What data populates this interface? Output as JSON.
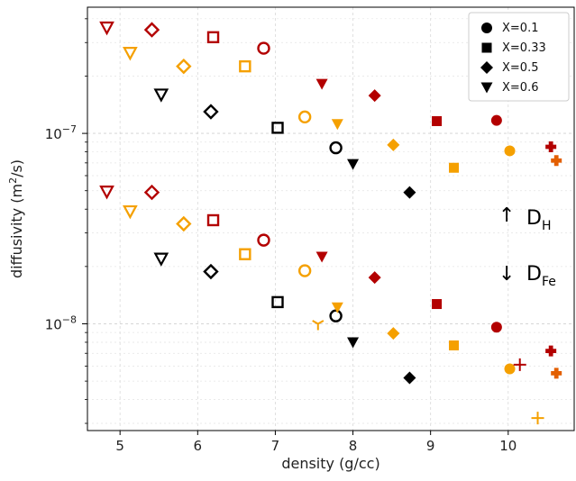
{
  "chart_data": {
    "type": "scatter",
    "xlabel": "density (g/cc)",
    "ylabel": "diffusivity (m",
    "ylabel_sup": "2",
    "ylabel_tail": "/s)",
    "xlim": [
      4.58,
      10.85
    ],
    "ylim": [
      2.75e-09,
      4.6e-07
    ],
    "yscale": "log",
    "grid": true,
    "x_ticks": [
      {
        "value": 5,
        "label": "5"
      },
      {
        "value": 6,
        "label": "6"
      },
      {
        "value": 7,
        "label": "7"
      },
      {
        "value": 8,
        "label": "8"
      },
      {
        "value": 9,
        "label": "9"
      },
      {
        "value": 10,
        "label": "10"
      }
    ],
    "y_ticks": [
      {
        "value": 1e-08,
        "label": "10",
        "exp": "−8"
      },
      {
        "value": 1e-07,
        "label": "10",
        "exp": "−7"
      }
    ],
    "legend": {
      "placement": "top-right",
      "entries": [
        {
          "label": "X=0.1",
          "marker": "circle"
        },
        {
          "label": "X=0.33",
          "marker": "square"
        },
        {
          "label": "X=0.5",
          "marker": "diamond"
        },
        {
          "label": "X=0.6",
          "marker": "triangle_down"
        }
      ]
    },
    "colors": {
      "dark_red": "#b30000",
      "orange": "#f5a000",
      "black": "#000000",
      "orange_red": "#e35f00"
    },
    "annotations": [
      {
        "arrow": "↑",
        "text": "D",
        "sub": "H"
      },
      {
        "arrow": "↓",
        "text": "D",
        "sub": "Fe"
      }
    ],
    "series": [
      {
        "group": "D_H",
        "points": [
          {
            "x": 4.83,
            "y": 3.6e-07,
            "marker": "triangle_down",
            "fill": "open",
            "color": "#b30000"
          },
          {
            "x": 5.13,
            "y": 2.65e-07,
            "marker": "triangle_down",
            "fill": "open",
            "color": "#f5a000"
          },
          {
            "x": 5.53,
            "y": 1.6e-07,
            "marker": "triangle_down",
            "fill": "open",
            "color": "#000000"
          },
          {
            "x": 5.41,
            "y": 3.5e-07,
            "marker": "diamond",
            "fill": "open",
            "color": "#b30000"
          },
          {
            "x": 5.82,
            "y": 2.25e-07,
            "marker": "diamond",
            "fill": "open",
            "color": "#f5a000"
          },
          {
            "x": 6.17,
            "y": 1.3e-07,
            "marker": "diamond",
            "fill": "open",
            "color": "#000000"
          },
          {
            "x": 6.2,
            "y": 3.2e-07,
            "marker": "square",
            "fill": "open",
            "color": "#b30000"
          },
          {
            "x": 6.61,
            "y": 2.25e-07,
            "marker": "square",
            "fill": "open",
            "color": "#f5a000"
          },
          {
            "x": 7.03,
            "y": 1.07e-07,
            "marker": "square",
            "fill": "open",
            "color": "#000000"
          },
          {
            "x": 6.85,
            "y": 2.8e-07,
            "marker": "circle",
            "fill": "open",
            "color": "#b30000"
          },
          {
            "x": 7.38,
            "y": 1.22e-07,
            "marker": "circle",
            "fill": "open",
            "color": "#f5a000"
          },
          {
            "x": 7.78,
            "y": 8.4e-08,
            "marker": "circle",
            "fill": "open",
            "color": "#000000"
          },
          {
            "x": 7.6,
            "y": 1.82e-07,
            "marker": "triangle_down",
            "fill": "filled",
            "color": "#b30000"
          },
          {
            "x": 7.8,
            "y": 1.12e-07,
            "marker": "triangle_down",
            "fill": "filled",
            "color": "#f5a000"
          },
          {
            "x": 8.0,
            "y": 6.9e-08,
            "marker": "triangle_down",
            "fill": "filled",
            "color": "#000000"
          },
          {
            "x": 8.28,
            "y": 1.58e-07,
            "marker": "diamond",
            "fill": "filled",
            "color": "#b30000"
          },
          {
            "x": 8.52,
            "y": 8.7e-08,
            "marker": "diamond",
            "fill": "filled",
            "color": "#f5a000"
          },
          {
            "x": 8.73,
            "y": 4.9e-08,
            "marker": "diamond",
            "fill": "filled",
            "color": "#000000"
          },
          {
            "x": 9.08,
            "y": 1.16e-07,
            "marker": "square",
            "fill": "filled",
            "color": "#b30000"
          },
          {
            "x": 9.3,
            "y": 6.6e-08,
            "marker": "square",
            "fill": "filled",
            "color": "#f5a000"
          },
          {
            "x": 9.85,
            "y": 1.17e-07,
            "marker": "circle",
            "fill": "filled",
            "color": "#b30000"
          },
          {
            "x": 10.02,
            "y": 8.1e-08,
            "marker": "circle",
            "fill": "filled",
            "color": "#f5a000"
          },
          {
            "x": 10.55,
            "y": 8.5e-08,
            "marker": "thick_plus",
            "fill": "filled",
            "color": "#b30000"
          },
          {
            "x": 10.62,
            "y": 7.2e-08,
            "marker": "thick_plus",
            "fill": "filled",
            "color": "#e35f00"
          }
        ]
      },
      {
        "group": "D_Fe",
        "points": [
          {
            "x": 4.83,
            "y": 4.95e-08,
            "marker": "triangle_down",
            "fill": "open",
            "color": "#b30000"
          },
          {
            "x": 5.13,
            "y": 3.9e-08,
            "marker": "triangle_down",
            "fill": "open",
            "color": "#f5a000"
          },
          {
            "x": 5.53,
            "y": 2.2e-08,
            "marker": "triangle_down",
            "fill": "open",
            "color": "#000000"
          },
          {
            "x": 5.41,
            "y": 4.9e-08,
            "marker": "diamond",
            "fill": "open",
            "color": "#b30000"
          },
          {
            "x": 5.82,
            "y": 3.35e-08,
            "marker": "diamond",
            "fill": "open",
            "color": "#f5a000"
          },
          {
            "x": 6.17,
            "y": 1.88e-08,
            "marker": "diamond",
            "fill": "open",
            "color": "#000000"
          },
          {
            "x": 6.2,
            "y": 3.5e-08,
            "marker": "square",
            "fill": "open",
            "color": "#b30000"
          },
          {
            "x": 6.61,
            "y": 2.32e-08,
            "marker": "square",
            "fill": "open",
            "color": "#f5a000"
          },
          {
            "x": 7.03,
            "y": 1.3e-08,
            "marker": "square",
            "fill": "open",
            "color": "#000000"
          },
          {
            "x": 6.85,
            "y": 2.75e-08,
            "marker": "circle",
            "fill": "open",
            "color": "#b30000"
          },
          {
            "x": 7.38,
            "y": 1.9e-08,
            "marker": "circle",
            "fill": "open",
            "color": "#f5a000"
          },
          {
            "x": 7.78,
            "y": 1.1e-08,
            "marker": "circle",
            "fill": "open",
            "color": "#000000"
          },
          {
            "x": 7.6,
            "y": 2.25e-08,
            "marker": "triangle_down",
            "fill": "filled",
            "color": "#b30000"
          },
          {
            "x": 7.8,
            "y": 1.22e-08,
            "marker": "triangle_down",
            "fill": "filled",
            "color": "#f5a000"
          },
          {
            "x": 8.0,
            "y": 8e-09,
            "marker": "triangle_down",
            "fill": "filled",
            "color": "#000000"
          },
          {
            "x": 7.55,
            "y": 1e-08,
            "marker": "tri_down",
            "fill": "open",
            "color": "#f5a000"
          },
          {
            "x": 8.28,
            "y": 1.75e-08,
            "marker": "diamond",
            "fill": "filled",
            "color": "#b30000"
          },
          {
            "x": 8.52,
            "y": 8.9e-09,
            "marker": "diamond",
            "fill": "filled",
            "color": "#f5a000"
          },
          {
            "x": 8.73,
            "y": 5.2e-09,
            "marker": "diamond",
            "fill": "filled",
            "color": "#000000"
          },
          {
            "x": 9.08,
            "y": 1.27e-08,
            "marker": "square",
            "fill": "filled",
            "color": "#b30000"
          },
          {
            "x": 9.3,
            "y": 7.7e-09,
            "marker": "square",
            "fill": "filled",
            "color": "#f5a000"
          },
          {
            "x": 9.85,
            "y": 9.6e-09,
            "marker": "circle",
            "fill": "filled",
            "color": "#b30000"
          },
          {
            "x": 10.02,
            "y": 5.8e-09,
            "marker": "circle",
            "fill": "filled",
            "color": "#f5a000"
          },
          {
            "x": 10.15,
            "y": 6.1e-09,
            "marker": "plus",
            "fill": "open",
            "color": "#b30000"
          },
          {
            "x": 10.38,
            "y": 3.2e-09,
            "marker": "plus",
            "fill": "open",
            "color": "#f5a000"
          },
          {
            "x": 10.55,
            "y": 7.2e-09,
            "marker": "thick_plus",
            "fill": "filled",
            "color": "#b30000"
          },
          {
            "x": 10.62,
            "y": 5.5e-09,
            "marker": "thick_plus",
            "fill": "filled",
            "color": "#e35f00"
          }
        ]
      }
    ]
  }
}
